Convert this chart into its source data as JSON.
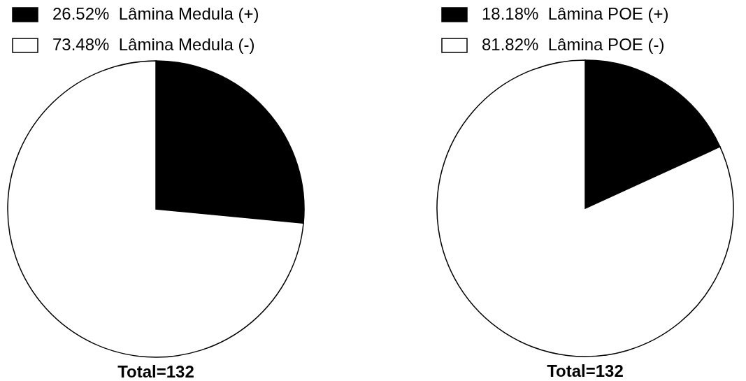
{
  "chart_data": [
    {
      "type": "pie",
      "categories": [
        "Lâmina Medula (+)",
        "Lâmina Medula (-)"
      ],
      "values": [
        26.52,
        73.48
      ],
      "colors": [
        "#000000",
        "#ffffff"
      ],
      "value_labels": [
        "26.52%",
        "73.48%"
      ],
      "legend": "top left",
      "annotations": [
        "Total=132"
      ]
    },
    {
      "type": "pie",
      "categories": [
        "Lâmina POE (+)",
        "Lâmina POE (-)"
      ],
      "values": [
        18.18,
        81.82
      ],
      "colors": [
        "#000000",
        "#ffffff"
      ],
      "value_labels": [
        "18.18%",
        "81.82%"
      ],
      "legend": "top left",
      "annotations": [
        "Total=132"
      ]
    }
  ]
}
